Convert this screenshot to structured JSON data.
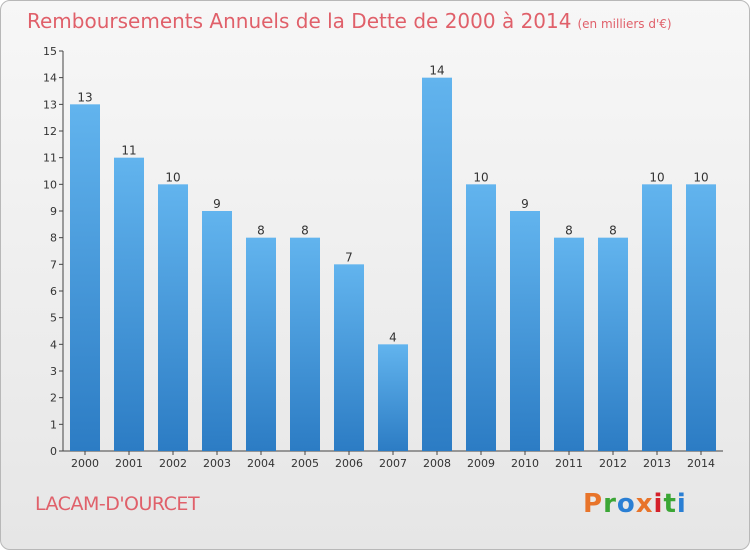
{
  "header": {
    "title": "Remboursements Annuels de la Dette de 2000 à 2014",
    "unit": "(en milliers d'€)"
  },
  "footer": {
    "commune": "LACAM-D'OURCET",
    "logo": "Proxiti",
    "logo_colors": [
      "#e8742a",
      "#3ba635",
      "#2a7fd4",
      "#e8742a",
      "#d4202a",
      "#3ba635",
      "#2a7fd4"
    ]
  },
  "colors": {
    "bar_light": "#62b4ee",
    "bar_dark": "#2c7cc4",
    "title": "#e0606a"
  },
  "chart_data": {
    "type": "bar",
    "title": "Remboursements Annuels de la Dette de 2000 à 2014",
    "ylabel": "en milliers d'€",
    "xlabel": "",
    "categories": [
      "2000",
      "2001",
      "2002",
      "2003",
      "2004",
      "2005",
      "2006",
      "2007",
      "2008",
      "2009",
      "2010",
      "2011",
      "2012",
      "2013",
      "2014"
    ],
    "values": [
      13,
      11,
      10,
      9,
      8,
      8,
      7,
      4,
      14,
      10,
      9,
      8,
      8,
      10,
      10
    ],
    "ylim": [
      0,
      15
    ],
    "yticks": [
      "0",
      "1",
      "2",
      "3",
      "4",
      "5",
      "6",
      "7",
      "8",
      "9",
      "10",
      "11",
      "12",
      "13",
      "14",
      "15"
    ],
    "grid": false
  }
}
